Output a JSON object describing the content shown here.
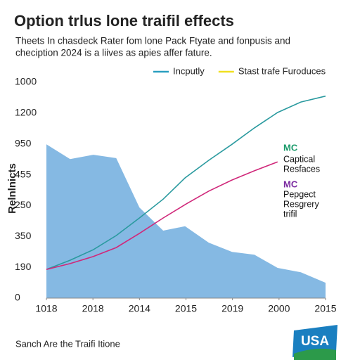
{
  "chart_data": {
    "type": "line",
    "title": "Option trlus lone traifil effects",
    "subtitle": [
      "Theets In chasdeck Rater fom lone Pack Ftyate and fonpusis and",
      "checiption 2024 is a liives as apies affer fature."
    ],
    "y_label": "Relnlnicts",
    "footer": "Sanch Are the Traifi Itione",
    "logo": "USA",
    "xlim": [
      0,
      6
    ],
    "xticks": [
      {
        "value": 0,
        "label": "1018"
      },
      {
        "value": 1,
        "label": "2018"
      },
      {
        "value": 2,
        "label": "2014"
      },
      {
        "value": 3,
        "label": "2015"
      },
      {
        "value": 4,
        "label": "2019"
      },
      {
        "value": 5,
        "label": "2000"
      },
      {
        "value": 6,
        "label": "2015"
      }
    ],
    "ylim": [
      0,
      7
    ],
    "yticks": [
      {
        "value": 0,
        "label": "0"
      },
      {
        "value": 1,
        "label": "190"
      },
      {
        "value": 2,
        "label": "350"
      },
      {
        "value": 3,
        "label": "250"
      },
      {
        "value": 4,
        "label": "455"
      },
      {
        "value": 5,
        "label": "950"
      },
      {
        "value": 6,
        "label": "1200"
      },
      {
        "value": 7,
        "label": "1000"
      }
    ],
    "legend": [
      {
        "name": "Incputly",
        "color": "#2a9fc0"
      },
      {
        "name": "Stast trafe Furoduces",
        "color": "#f0e020"
      }
    ],
    "series": [
      {
        "kind": "area",
        "color": "#85b9e3",
        "x": [
          0,
          0.51,
          1.01,
          1.5,
          2.0,
          2.51,
          2.98,
          3.49,
          3.99,
          4.47,
          4.97,
          5.47,
          6
        ],
        "values": [
          4.99,
          4.51,
          4.65,
          4.54,
          2.94,
          2.19,
          2.33,
          1.8,
          1.5,
          1.41,
          0.98,
          0.84,
          0.5
        ]
      },
      {
        "kind": "line",
        "color": "#2a9a9f",
        "x": [
          0,
          0.51,
          1.01,
          1.5,
          2.0,
          2.51,
          2.98,
          3.49,
          3.99,
          4.47,
          4.97,
          5.47,
          6
        ],
        "values": [
          0.93,
          1.23,
          1.57,
          2.03,
          2.6,
          3.21,
          3.9,
          4.47,
          4.99,
          5.52,
          6.02,
          6.36,
          6.55
        ]
      },
      {
        "kind": "line",
        "color": "#d0287a",
        "x": [
          0,
          0.51,
          1.01,
          1.5,
          2.0,
          2.51,
          3.01,
          3.49,
          3.99,
          4.47,
          4.97
        ],
        "values": [
          0.93,
          1.12,
          1.35,
          1.64,
          2.1,
          2.6,
          3.06,
          3.47,
          3.83,
          4.13,
          4.42
        ]
      }
    ],
    "annotations": [
      {
        "text": "MC",
        "color": "#1a9a6a"
      },
      {
        "text": "Captical",
        "color": "#111"
      },
      {
        "text": "Resfaces",
        "color": "#111"
      },
      {
        "text": "MC",
        "color": "#7a2aa0"
      },
      {
        "text": "Pepgect",
        "color": "#111"
      },
      {
        "text": "Resgrery",
        "color": "#111"
      },
      {
        "text": "trifil",
        "color": "#111"
      }
    ]
  }
}
